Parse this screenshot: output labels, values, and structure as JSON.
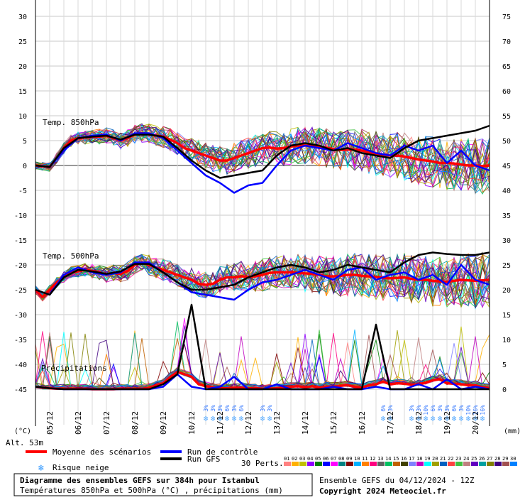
{
  "chart_data": {
    "type": "line",
    "title": "Diagramme des ensembles GEFS sur 384h pour Istanbul",
    "subtitle": "Températures 850hPa et 500hPa (°C) , précipitations (mm)",
    "run_info": "Ensemble GEFS du 04/12/2024 - 12Z",
    "copyright": "Copyright 2024 Meteociel.fr",
    "altitude": "Alt. 53m",
    "left_unit": "(°C)",
    "right_unit": "(mm)",
    "left_ticks": [
      "30",
      "25",
      "20",
      "15",
      "10",
      "5",
      "0",
      "-5",
      "-10",
      "-15",
      "-20",
      "-25",
      "-30",
      "-35",
      "-40",
      "-45"
    ],
    "right_ticks": [
      "75",
      "70",
      "65",
      "60",
      "55",
      "50",
      "45",
      "40",
      "35",
      "30",
      "25",
      "20",
      "15",
      "10",
      "5",
      "0"
    ],
    "x_labels": [
      "05/12",
      "06/12",
      "07/12",
      "08/12",
      "09/12",
      "10/12",
      "11/12",
      "12/12",
      "13/12",
      "14/12",
      "15/12",
      "16/12",
      "17/12",
      "18/12",
      "19/12",
      "20/12"
    ],
    "ylim_left": [
      -45,
      30
    ],
    "ylim_right": [
      0,
      75
    ],
    "grid": true,
    "panel_labels": {
      "t850": "Temp. 850hPa",
      "t500": "Temp. 500hPa",
      "precip": "Précipitations"
    },
    "legend": {
      "mean": "Moyenne des scénarios",
      "control": "Run de contrôle",
      "gfs": "Run GFS",
      "snow": "Risque neige",
      "perts_label": "30 Perts.",
      "perts_numbers": [
        "01",
        "02",
        "03",
        "04",
        "05",
        "06",
        "07",
        "08",
        "09",
        "10",
        "11",
        "12",
        "13",
        "14",
        "15",
        "16",
        "17",
        "18",
        "19",
        "20",
        "21",
        "22",
        "23",
        "24",
        "25",
        "26",
        "27",
        "28",
        "29",
        "30"
      ],
      "perts_colors": [
        "#ff8080",
        "#ffb000",
        "#c0c000",
        "#9000ff",
        "#008000",
        "#0000ff",
        "#ff00ff",
        "#008080",
        "#800000",
        "#00b0ff",
        "#ff8000",
        "#ff0080",
        "#606060",
        "#00c060",
        "#c06000",
        "#404000",
        "#8080ff",
        "#c000c0",
        "#00ffff",
        "#a0a000",
        "#0060c0",
        "#ff4040",
        "#40c040",
        "#c08080",
        "#6000c0",
        "#00a0a0",
        "#808000",
        "#400080",
        "#a05050",
        "#0080ff"
      ]
    },
    "snow_risk": [
      {
        "time_h": 144,
        "pct": "3%"
      },
      {
        "time_h": 150,
        "pct": "3%"
      },
      {
        "time_h": 156,
        "pct": "3%"
      },
      {
        "time_h": 162,
        "pct": "6%"
      },
      {
        "time_h": 168,
        "pct": "3%"
      },
      {
        "time_h": 174,
        "pct": "6%"
      },
      {
        "time_h": 192,
        "pct": "3%"
      },
      {
        "time_h": 198,
        "pct": "3%"
      },
      {
        "time_h": 294,
        "pct": "6%"
      },
      {
        "time_h": 300,
        "pct": "3%"
      },
      {
        "time_h": 318,
        "pct": "3%"
      },
      {
        "time_h": 324,
        "pct": "3%"
      },
      {
        "time_h": 330,
        "pct": "10%"
      },
      {
        "time_h": 336,
        "pct": "6%"
      },
      {
        "time_h": 342,
        "pct": "3%"
      },
      {
        "time_h": 348,
        "pct": "3%"
      },
      {
        "time_h": 354,
        "pct": "6%"
      },
      {
        "time_h": 360,
        "pct": "3%"
      },
      {
        "time_h": 366,
        "pct": "10%"
      },
      {
        "time_h": 372,
        "pct": "16%"
      },
      {
        "time_h": 378,
        "pct": "16%"
      }
    ],
    "series": [
      {
        "name": "Moyenne des scénarios",
        "panel": "t850",
        "color": "#ff0000",
        "x": [
          0,
          6,
          12,
          18,
          24,
          30,
          36,
          42,
          48,
          54,
          60,
          66,
          72,
          78,
          84,
          90,
          96,
          102,
          108,
          114,
          120,
          126,
          132,
          138,
          144,
          150,
          156,
          162,
          168,
          174,
          180,
          186,
          192,
          198,
          204,
          210,
          216,
          222,
          228,
          234,
          240,
          246,
          252,
          258,
          264,
          270,
          276,
          282,
          288,
          294,
          300,
          306,
          312,
          318,
          324,
          330,
          336,
          342,
          348,
          354,
          360,
          366,
          372,
          378,
          384
        ],
        "values": [
          0,
          -0.2,
          -0.3,
          1.5,
          3.5,
          5,
          5.5,
          5.6,
          5.8,
          5.8,
          6,
          5.5,
          5,
          5.5,
          6.3,
          6.5,
          6.3,
          6,
          5.8,
          5.2,
          4.5,
          3.5,
          3,
          2.5,
          2,
          1.5,
          1,
          1,
          1.5,
          2,
          2.5,
          3,
          3.5,
          3.6,
          3.4,
          3.5,
          3.8,
          4,
          4,
          4,
          3.8,
          3.6,
          3.3,
          3.1,
          3.2,
          3.2,
          3,
          2.7,
          2.4,
          2.2,
          2,
          2,
          1.8,
          1.5,
          1.2,
          1,
          0.8,
          0.5,
          0.5,
          0.4,
          0.2,
          0,
          0,
          -0.1,
          0
        ]
      },
      {
        "name": "Run de contrôle",
        "panel": "t850",
        "color": "#0000ff",
        "x": [
          0,
          12,
          24,
          36,
          48,
          60,
          72,
          84,
          96,
          108,
          120,
          132,
          144,
          156,
          168,
          180,
          192,
          204,
          216,
          228,
          240,
          252,
          264,
          276,
          288,
          300,
          312,
          324,
          336,
          348,
          360,
          372,
          384
        ],
        "values": [
          0,
          -0.3,
          3,
          5.5,
          6,
          6.2,
          5,
          6.5,
          6.5,
          5.5,
          3,
          0.5,
          -2,
          -3.5,
          -5.5,
          -4,
          -3.5,
          0,
          3,
          4,
          3.5,
          3,
          4.5,
          3.5,
          2.5,
          2,
          4,
          3,
          4,
          0.5,
          3,
          0,
          -1
        ]
      },
      {
        "name": "Run GFS",
        "panel": "t850",
        "color": "#000000",
        "x": [
          0,
          12,
          24,
          36,
          48,
          60,
          72,
          84,
          96,
          108,
          120,
          132,
          144,
          156,
          168,
          180,
          192,
          204,
          216,
          228,
          240,
          252,
          264,
          276,
          288,
          300,
          312,
          324,
          336,
          348,
          360,
          372,
          384
        ],
        "values": [
          0,
          -0.3,
          3.5,
          5.5,
          5.8,
          6,
          5.2,
          6.2,
          6.2,
          5.8,
          3.5,
          1,
          -1,
          -2.5,
          -2,
          -1.5,
          -1,
          2,
          4,
          4.5,
          4,
          3,
          3.5,
          2.5,
          2,
          1.5,
          3.5,
          5,
          5.5,
          6,
          6.5,
          7,
          8
        ]
      },
      {
        "name": "Moyenne des scénarios",
        "panel": "t500",
        "color": "#ff0000",
        "x": [
          0,
          6,
          12,
          18,
          24,
          30,
          36,
          42,
          48,
          54,
          60,
          66,
          72,
          78,
          84,
          90,
          96,
          102,
          108,
          114,
          120,
          126,
          132,
          138,
          144,
          150,
          156,
          162,
          168,
          174,
          180,
          186,
          192,
          198,
          204,
          210,
          216,
          222,
          228,
          234,
          240,
          246,
          252,
          258,
          264,
          270,
          276,
          282,
          288,
          294,
          300,
          306,
          312,
          318,
          324,
          330,
          336,
          342,
          348,
          354,
          360,
          366,
          372,
          378,
          384
        ],
        "values": [
          -25,
          -26.5,
          -25,
          -23.5,
          -22.5,
          -21.5,
          -21.3,
          -21,
          -21.2,
          -21.5,
          -22,
          -21.6,
          -21.8,
          -21.2,
          -20,
          -19.5,
          -20,
          -20.5,
          -21,
          -21.5,
          -22,
          -22.5,
          -23,
          -23.8,
          -24,
          -23.8,
          -23,
          -22.5,
          -22.5,
          -22.3,
          -22.4,
          -22.3,
          -22,
          -21.6,
          -21.5,
          -21.5,
          -21.5,
          -21.6,
          -21.7,
          -21.8,
          -22,
          -22.3,
          -22.3,
          -22.2,
          -22,
          -22,
          -22.2,
          -22.3,
          -22.4,
          -22.6,
          -22.7,
          -22.6,
          -22.5,
          -22.8,
          -23,
          -23,
          -23.2,
          -23.3,
          -23.4,
          -23.2,
          -23,
          -23.1,
          -23.2,
          -23.1,
          -23
        ]
      },
      {
        "name": "Run de contrôle",
        "panel": "t500",
        "color": "#0000ff",
        "x": [
          0,
          12,
          24,
          36,
          48,
          60,
          72,
          84,
          96,
          108,
          120,
          132,
          144,
          156,
          168,
          180,
          192,
          204,
          216,
          228,
          240,
          252,
          264,
          276,
          288,
          300,
          312,
          324,
          336,
          348,
          360,
          372,
          384
        ],
        "values": [
          -25,
          -26,
          -22,
          -20.5,
          -21.5,
          -22,
          -21.5,
          -19.5,
          -19.5,
          -21.5,
          -23.5,
          -25.5,
          -26,
          -26.5,
          -27,
          -25,
          -23.5,
          -23,
          -22,
          -21,
          -22,
          -23,
          -21,
          -20.5,
          -23,
          -22,
          -21.5,
          -23,
          -22,
          -24,
          -20,
          -23,
          -24
        ]
      },
      {
        "name": "Run GFS",
        "panel": "t500",
        "color": "#000000",
        "x": [
          0,
          12,
          24,
          36,
          48,
          60,
          72,
          84,
          96,
          108,
          120,
          132,
          144,
          156,
          168,
          180,
          192,
          204,
          216,
          228,
          240,
          252,
          264,
          276,
          288,
          300,
          312,
          324,
          336,
          348,
          360,
          372,
          384
        ],
        "values": [
          -25,
          -26,
          -22.5,
          -21,
          -21.3,
          -21.8,
          -21.3,
          -19.8,
          -19.8,
          -21.5,
          -23.5,
          -25,
          -25,
          -24.5,
          -24,
          -22.5,
          -21.5,
          -20.5,
          -20,
          -20.5,
          -21.5,
          -21,
          -20,
          -20.5,
          -21,
          -21.5,
          -19.5,
          -18,
          -17.5,
          -17.8,
          -18,
          -18,
          -17.5
        ]
      },
      {
        "name": "Moyenne des scénarios",
        "panel": "precip",
        "color": "#ff0000",
        "x": [
          0,
          6,
          12,
          18,
          24,
          30,
          36,
          42,
          48,
          54,
          60,
          66,
          72,
          78,
          84,
          90,
          96,
          102,
          108,
          114,
          120,
          126,
          132,
          138,
          144,
          150,
          156,
          162,
          168,
          174,
          180,
          186,
          192,
          198,
          204,
          210,
          216,
          222,
          228,
          234,
          240,
          246,
          252,
          258,
          264,
          270,
          276,
          282,
          288,
          294,
          300,
          306,
          312,
          318,
          324,
          330,
          336,
          342,
          348,
          354,
          360,
          366,
          372,
          378,
          384
        ],
        "values": [
          0.5,
          0.3,
          0.2,
          0.1,
          0.1,
          0.1,
          0.1,
          0.1,
          0,
          0,
          0,
          0,
          0.1,
          0.1,
          0.1,
          0.1,
          0.3,
          0.8,
          1.2,
          2.5,
          3.5,
          3,
          2.5,
          1,
          0.6,
          0.4,
          0.2,
          0.2,
          0.3,
          0.3,
          0.2,
          0.2,
          0.1,
          0.1,
          0.2,
          0.3,
          0.5,
          0.6,
          0.4,
          0.6,
          0.3,
          0.5,
          0.5,
          0.7,
          0.8,
          0.5,
          0.3,
          0.8,
          1,
          1.5,
          1,
          1.2,
          1.1,
          0.9,
          1,
          1.3,
          1.8,
          2,
          1.2,
          1.1,
          1,
          0.8,
          0.8,
          0.4,
          0.2
        ]
      },
      {
        "name": "Run de contrôle",
        "panel": "precip",
        "color": "#0000ff",
        "x": [
          0,
          12,
          24,
          36,
          48,
          60,
          72,
          84,
          96,
          108,
          120,
          132,
          144,
          156,
          168,
          180,
          192,
          204,
          216,
          228,
          240,
          252,
          264,
          276,
          288,
          300,
          312,
          324,
          336,
          348,
          360,
          372,
          384
        ],
        "values": [
          0.5,
          0.2,
          0,
          0,
          0,
          0,
          0,
          0,
          0,
          0.5,
          3,
          0.5,
          0,
          0.5,
          2.5,
          0,
          0,
          1,
          0,
          0,
          0,
          0.5,
          0,
          0,
          0.5,
          0,
          0,
          1,
          0,
          2,
          0,
          0.5,
          0
        ]
      },
      {
        "name": "Run GFS",
        "panel": "precip",
        "color": "#000000",
        "x": [
          0,
          12,
          24,
          36,
          48,
          60,
          72,
          84,
          96,
          108,
          120,
          132,
          144,
          156,
          168,
          180,
          192,
          204,
          216,
          228,
          240,
          252,
          264,
          276,
          288,
          300,
          312,
          324,
          336,
          348,
          360,
          372,
          384
        ],
        "values": [
          0.5,
          0.2,
          0,
          0,
          0,
          0,
          0,
          0,
          0,
          1,
          3,
          17,
          0,
          0,
          0,
          0,
          0,
          0,
          0,
          0,
          0,
          0,
          0,
          0,
          13,
          0,
          0,
          0,
          0,
          0,
          0,
          0,
          0
        ]
      }
    ]
  }
}
